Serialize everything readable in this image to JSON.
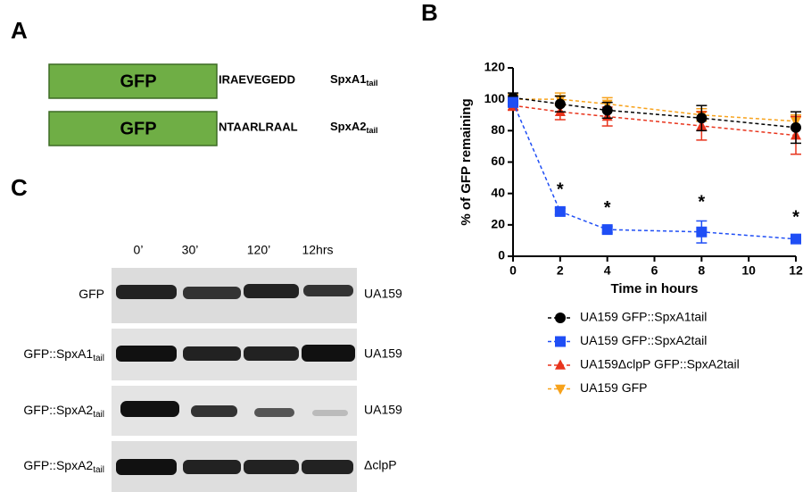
{
  "panel_a": {
    "label": "A",
    "constructs": [
      {
        "box": "GFP",
        "sequence": "IRAEVEGEDD",
        "name": "SpxA1",
        "name_sub": "tail"
      },
      {
        "box": "GFP",
        "sequence": "NTAARLRAAL",
        "name": "SpxA2",
        "name_sub": "tail"
      }
    ]
  },
  "panel_b": {
    "label": "B"
  },
  "panel_c": {
    "label": "C",
    "timepoints": [
      "0’",
      "30’",
      "120’",
      "12hrs"
    ],
    "rows": [
      {
        "name": "GFP",
        "strain": "UA159"
      },
      {
        "name": "GFP::SpxA1",
        "name_sub": "tail",
        "strain": "UA159"
      },
      {
        "name": "GFP::SpxA2",
        "name_sub": "tail",
        "strain": "UA159"
      },
      {
        "name": "GFP::SpxA2",
        "name_sub": "tail",
        "strain": "ΔclpP"
      }
    ]
  },
  "chart_data": {
    "type": "line",
    "xlabel": "Time in hours",
    "ylabel": "% of GFP remaining",
    "x": [
      0,
      2,
      4,
      8,
      12
    ],
    "xlim": [
      0,
      12
    ],
    "xticks": [
      0,
      2,
      4,
      6,
      8,
      10,
      12
    ],
    "ylim": [
      0,
      120
    ],
    "yticks": [
      0,
      20,
      40,
      60,
      80,
      100,
      120
    ],
    "series": [
      {
        "name": "UA159 GFP::SpxA1tail",
        "color": "#000000",
        "marker": "circle",
        "values": [
          101,
          97,
          93,
          88,
          82
        ],
        "errors": [
          3,
          5,
          5,
          8,
          10
        ]
      },
      {
        "name": "UA159 GFP::SpxA2tail",
        "color": "#1f4ef5",
        "marker": "square",
        "values": [
          98,
          28.5,
          17,
          15.5,
          11
        ],
        "errors": [
          3,
          2,
          2,
          7,
          2
        ]
      },
      {
        "name": "UA159ΔclpP GFP::SpxA2tail",
        "color": "#e8341c",
        "marker": "triangle",
        "values": [
          96,
          92,
          89,
          83,
          77
        ],
        "errors": [
          3,
          5,
          6,
          9,
          12
        ]
      },
      {
        "name": "UA159 GFP",
        "color": "#f7a21b",
        "marker": "triangle-down",
        "values": [
          100,
          100,
          97,
          90,
          86
        ],
        "errors": [
          3,
          4,
          4,
          4,
          4
        ]
      }
    ],
    "annotations": [
      {
        "x": 2,
        "text": "*"
      },
      {
        "x": 4,
        "text": "*"
      },
      {
        "x": 8,
        "text": "*"
      },
      {
        "x": 12,
        "text": "*"
      }
    ]
  }
}
